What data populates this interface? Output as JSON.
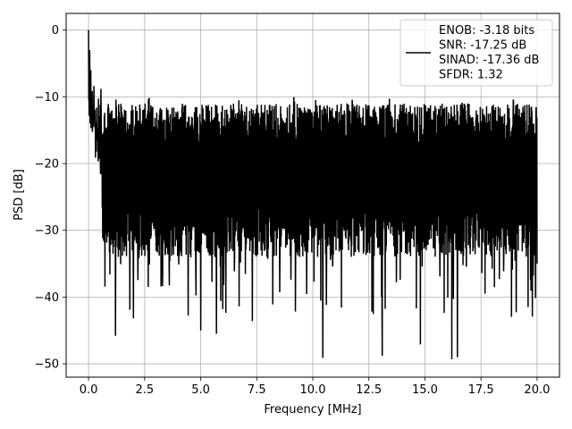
{
  "chart_data": {
    "type": "line",
    "title": "",
    "xlabel": "Frequency [MHz]",
    "ylabel": "PSD [dB]",
    "xlim": [
      -1.0,
      21.0
    ],
    "ylim": [
      -52.0,
      2.5
    ],
    "xticks": [
      0.0,
      2.5,
      5.0,
      7.5,
      10.0,
      12.5,
      15.0,
      17.5,
      20.0
    ],
    "xtick_labels": [
      "0.0",
      "2.5",
      "5.0",
      "7.5",
      "10.0",
      "12.5",
      "15.0",
      "17.5",
      "20.0"
    ],
    "yticks": [
      0,
      -10,
      -20,
      -30,
      -40,
      -50
    ],
    "ytick_labels": [
      "0",
      "−10",
      "−20",
      "−30",
      "−40",
      "−50"
    ],
    "grid": true,
    "legend_position": "top-right",
    "series": [
      {
        "name": "ENOB: -3.18 bits\nSNR: -17.25 dB\nSINAD: -17.36 dB\nSFDR: 1.32",
        "color": "#000000",
        "x_range": [
          0.0,
          20.0
        ],
        "num_points": 2000,
        "peak_db": 0.0,
        "noise_floor_db": -22.0,
        "upper_envelope_db": -14.0,
        "lower_envelope_db": -30.0,
        "min_db": -49.3,
        "notable_points": [
          {
            "x": 0.0,
            "y": 0.0
          },
          {
            "x": 0.05,
            "y": -3.0
          },
          {
            "x": 0.1,
            "y": -6.0
          },
          {
            "x": 0.15,
            "y": -11.0
          },
          {
            "x": 0.25,
            "y": -12.0
          },
          {
            "x": 0.55,
            "y": -8.8
          },
          {
            "x": 1.2,
            "y": -45.8
          },
          {
            "x": 2.0,
            "y": -43.2
          },
          {
            "x": 5.0,
            "y": -45.0
          },
          {
            "x": 5.7,
            "y": -45.5
          },
          {
            "x": 7.3,
            "y": -43.6
          },
          {
            "x": 10.45,
            "y": -49.1
          },
          {
            "x": 13.1,
            "y": -48.8
          },
          {
            "x": 14.8,
            "y": -47.1
          },
          {
            "x": 16.2,
            "y": -49.3
          },
          {
            "x": 16.45,
            "y": -49.0
          },
          {
            "x": 20.0,
            "y": -35.0
          }
        ]
      }
    ]
  }
}
